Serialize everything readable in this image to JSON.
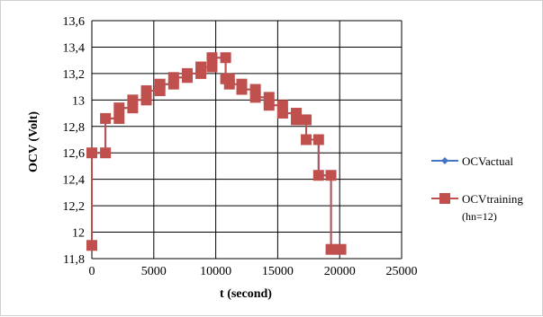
{
  "chart_data": {
    "type": "line",
    "xlabel": "t (second)",
    "ylabel": "OCV (Volt)",
    "xlim": [
      0,
      25000
    ],
    "ylim": [
      11.8,
      13.6
    ],
    "x_ticks": [
      0,
      5000,
      10000,
      15000,
      20000,
      25000
    ],
    "x_tick_labels": [
      "0",
      "5000",
      "10000",
      "15000",
      "20000",
      "25000"
    ],
    "y_ticks": [
      11.8,
      12.0,
      12.2,
      12.4,
      12.6,
      12.8,
      13.0,
      13.2,
      13.4,
      13.6
    ],
    "y_tick_labels": [
      "11,8",
      "12",
      "12,2",
      "12,4",
      "12,6",
      "12,8",
      "13",
      "13,2",
      "13,4",
      "13,6"
    ],
    "grid": true,
    "legend_position": "right",
    "series": [
      {
        "name": "OCVactual",
        "color": "#4472c4",
        "marker": "diamond",
        "x": [
          0,
          0,
          1100,
          1100,
          2200,
          2200,
          3300,
          3300,
          4400,
          4400,
          5500,
          5500,
          6600,
          6600,
          7700,
          7700,
          8800,
          8800,
          9700,
          9700,
          10800,
          10800,
          11100,
          11100,
          12100,
          12100,
          13200,
          13200,
          14300,
          14300,
          15400,
          15400,
          16500,
          16500,
          17300,
          17300,
          18300,
          18300,
          19300,
          19300,
          20100
        ],
        "y": [
          11.9,
          12.6,
          12.6,
          12.86,
          12.86,
          12.94,
          12.94,
          13.0,
          13.0,
          13.07,
          13.07,
          13.12,
          13.12,
          13.17,
          13.17,
          13.2,
          13.2,
          13.25,
          13.25,
          13.32,
          13.32,
          13.16,
          13.16,
          13.12,
          13.12,
          13.08,
          13.08,
          13.02,
          13.02,
          12.96,
          12.96,
          12.9,
          12.9,
          12.85,
          12.85,
          12.7,
          12.7,
          12.43,
          12.43,
          11.87,
          11.87
        ]
      },
      {
        "name": "OCVtraining",
        "name_extra": "(hn=12)",
        "color": "#c0504d",
        "marker": "square",
        "x": [
          0,
          0,
          1100,
          1100,
          2200,
          2200,
          3300,
          3300,
          4400,
          4400,
          5500,
          5500,
          6600,
          6600,
          7700,
          7700,
          8800,
          8800,
          9700,
          9700,
          10800,
          10800,
          11100,
          11100,
          12100,
          12100,
          13200,
          13200,
          14300,
          14300,
          15400,
          15400,
          16500,
          16500,
          17300,
          17300,
          18300,
          18300,
          19300,
          19300,
          20100
        ],
        "y": [
          11.9,
          12.6,
          12.6,
          12.86,
          12.86,
          12.94,
          12.94,
          13.0,
          13.0,
          13.07,
          13.07,
          13.12,
          13.12,
          13.17,
          13.17,
          13.2,
          13.2,
          13.25,
          13.25,
          13.32,
          13.32,
          13.16,
          13.16,
          13.12,
          13.12,
          13.08,
          13.08,
          13.02,
          13.02,
          12.96,
          12.96,
          12.9,
          12.9,
          12.85,
          12.85,
          12.7,
          12.7,
          12.43,
          12.43,
          11.87,
          11.87
        ]
      }
    ]
  }
}
